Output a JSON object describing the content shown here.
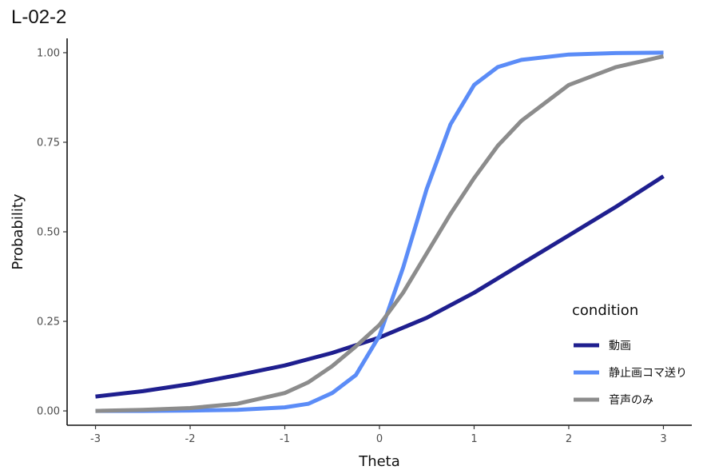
{
  "chart_data": {
    "type": "line",
    "title": "L-02-2",
    "xlabel": "Theta",
    "ylabel": "Probability",
    "xlim": [
      -3.3,
      3.3
    ],
    "ylim": [
      -0.04,
      1.04
    ],
    "x_ticks": [
      -3,
      -2,
      -1,
      0,
      1,
      2,
      3
    ],
    "x_tick_labels": [
      "-3",
      "-2",
      "-1",
      "0",
      "1",
      "2",
      "3"
    ],
    "y_ticks": [
      0,
      0.25,
      0.5,
      0.75,
      1
    ],
    "y_tick_labels": [
      "0.00",
      "0.25",
      "0.50",
      "0.75",
      "1.00"
    ],
    "grid": false,
    "legend": {
      "title": "condition",
      "position": "bottom-right"
    },
    "series": [
      {
        "name": "動画",
        "color": "#1f1f8f",
        "x": [
          -3,
          -2.5,
          -2,
          -1.5,
          -1,
          -0.5,
          0,
          0.5,
          1,
          1.5,
          2,
          2.5,
          3
        ],
        "y": [
          0.04,
          0.055,
          0.075,
          0.1,
          0.127,
          0.162,
          0.205,
          0.26,
          0.33,
          0.41,
          0.49,
          0.57,
          0.655
        ]
      },
      {
        "name": "静止画コマ送り",
        "color": "#5b8cf7",
        "x": [
          -3,
          -2.5,
          -2,
          -1.5,
          -1,
          -0.75,
          -0.5,
          -0.25,
          0,
          0.25,
          0.5,
          0.75,
          1,
          1.25,
          1.5,
          2,
          2.5,
          3
        ],
        "y": [
          0.0,
          0.0,
          0.001,
          0.003,
          0.01,
          0.02,
          0.05,
          0.1,
          0.21,
          0.4,
          0.62,
          0.8,
          0.91,
          0.96,
          0.98,
          0.995,
          0.999,
          1.0
        ]
      },
      {
        "name": "音声のみ",
        "color": "#8c8c8c",
        "x": [
          -3,
          -2.5,
          -2,
          -1.5,
          -1,
          -0.75,
          -0.5,
          -0.25,
          0,
          0.25,
          0.5,
          0.75,
          1,
          1.25,
          1.5,
          2,
          2.5,
          3
        ],
        "y": [
          0.0,
          0.003,
          0.008,
          0.02,
          0.05,
          0.08,
          0.125,
          0.18,
          0.24,
          0.33,
          0.44,
          0.55,
          0.65,
          0.74,
          0.81,
          0.91,
          0.96,
          0.99
        ]
      }
    ]
  }
}
